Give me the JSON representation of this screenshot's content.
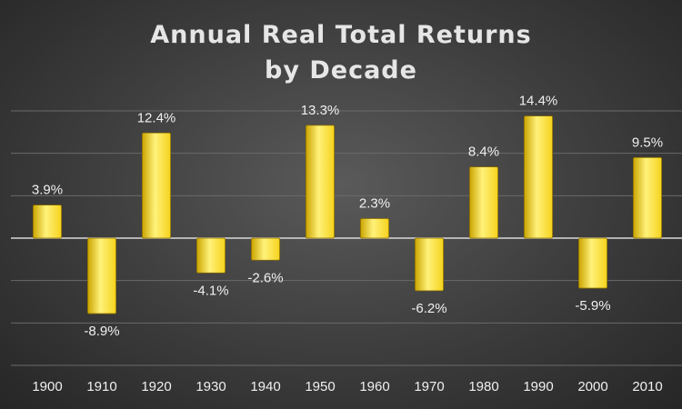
{
  "chart_data": {
    "type": "bar",
    "title": "Annual Real Total Returns by Decade",
    "title_lines": [
      "Annual Real Total Returns",
      "by Decade"
    ],
    "categories": [
      "1900",
      "1910",
      "1920",
      "1930",
      "1940",
      "1950",
      "1960",
      "1970",
      "1980",
      "1990",
      "2000",
      "2010"
    ],
    "values": [
      3.9,
      -8.9,
      12.4,
      -4.1,
      -2.6,
      13.3,
      2.3,
      -6.2,
      8.4,
      14.4,
      -5.9,
      9.5
    ],
    "data_labels": [
      "3.9%",
      "-8.9%",
      "12.4%",
      "-4.1%",
      "-2.6%",
      "13.3%",
      "2.3%",
      "-6.2%",
      "8.4%",
      "14.4%",
      "-5.9%",
      "9.5%"
    ],
    "xlabel": "",
    "ylabel": "",
    "ylim": [
      -15,
      15
    ],
    "gridlines": [
      -15,
      -10,
      -5,
      0,
      5,
      10,
      15
    ],
    "grid": true,
    "legend": "none",
    "colors": {
      "bar": "#f5d21c",
      "bar_light": "#fff27a",
      "bar_dark": "#caa400"
    }
  }
}
